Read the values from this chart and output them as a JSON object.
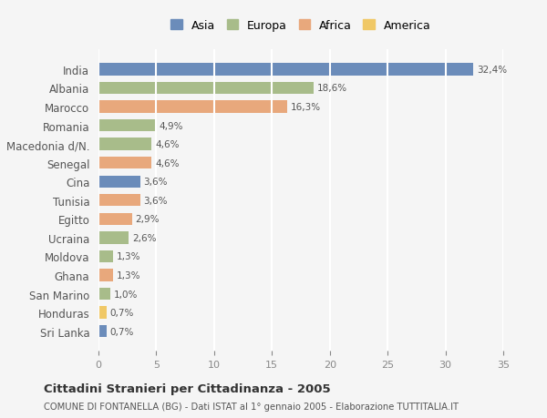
{
  "countries": [
    "India",
    "Albania",
    "Marocco",
    "Romania",
    "Macedonia d/N.",
    "Senegal",
    "Cina",
    "Tunisia",
    "Egitto",
    "Ucraina",
    "Moldova",
    "Ghana",
    "San Marino",
    "Honduras",
    "Sri Lanka"
  ],
  "values": [
    32.4,
    18.6,
    16.3,
    4.9,
    4.6,
    4.6,
    3.6,
    3.6,
    2.9,
    2.6,
    1.3,
    1.3,
    1.0,
    0.7,
    0.7
  ],
  "labels": [
    "32,4%",
    "18,6%",
    "16,3%",
    "4,9%",
    "4,6%",
    "4,6%",
    "3,6%",
    "3,6%",
    "2,9%",
    "2,6%",
    "1,3%",
    "1,3%",
    "1,0%",
    "0,7%",
    "0,7%"
  ],
  "colors": [
    "#6b8cba",
    "#a8bc8a",
    "#e8a87c",
    "#a8bc8a",
    "#a8bc8a",
    "#e8a87c",
    "#6b8cba",
    "#e8a87c",
    "#e8a87c",
    "#a8bc8a",
    "#a8bc8a",
    "#e8a87c",
    "#a8bc8a",
    "#f0c866",
    "#6b8cba"
  ],
  "legend_labels": [
    "Asia",
    "Europa",
    "Africa",
    "America"
  ],
  "legend_colors": [
    "#6b8cba",
    "#a8bc8a",
    "#e8a87c",
    "#f0c866"
  ],
  "title": "Cittadini Stranieri per Cittadinanza - 2005",
  "subtitle": "COMUNE DI FONTANELLA (BG) - Dati ISTAT al 1° gennaio 2005 - Elaborazione TUTTITALIA.IT",
  "xlim": [
    0,
    35
  ],
  "xticks": [
    0,
    5,
    10,
    15,
    20,
    25,
    30,
    35
  ],
  "background_color": "#f5f5f5",
  "grid_color": "#ffffff",
  "bar_height": 0.65
}
